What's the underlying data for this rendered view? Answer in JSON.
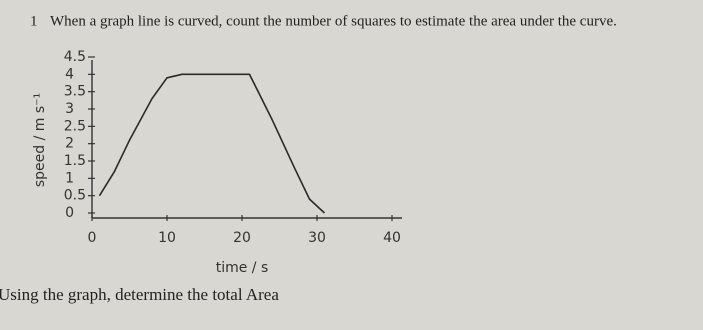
{
  "question_number": "1",
  "question": "When a graph line is curved, count the number of squares to estimate the area under the curve.",
  "instruction": "Using the graph, determine the total Area",
  "chart_data": {
    "type": "line",
    "xlabel": "time / s",
    "ylabel": "speed / m s⁻¹",
    "x": [
      1,
      3,
      5,
      8,
      10,
      12,
      21,
      24,
      27,
      29,
      31
    ],
    "series": [
      {
        "color": "#2a2a2a",
        "values": [
          0.5,
          1.2,
          2.1,
          3.3,
          3.9,
          4,
          4,
          2.7,
          1.3,
          0.4,
          0
        ]
      }
    ],
    "xlim": [
      0,
      40
    ],
    "ylim": [
      0,
      4.5
    ],
    "xticks": [
      0,
      10,
      20,
      30,
      40
    ],
    "yticks": [
      0,
      0.5,
      1,
      1.5,
      2,
      2.5,
      3,
      3.5,
      4,
      4.5
    ]
  }
}
